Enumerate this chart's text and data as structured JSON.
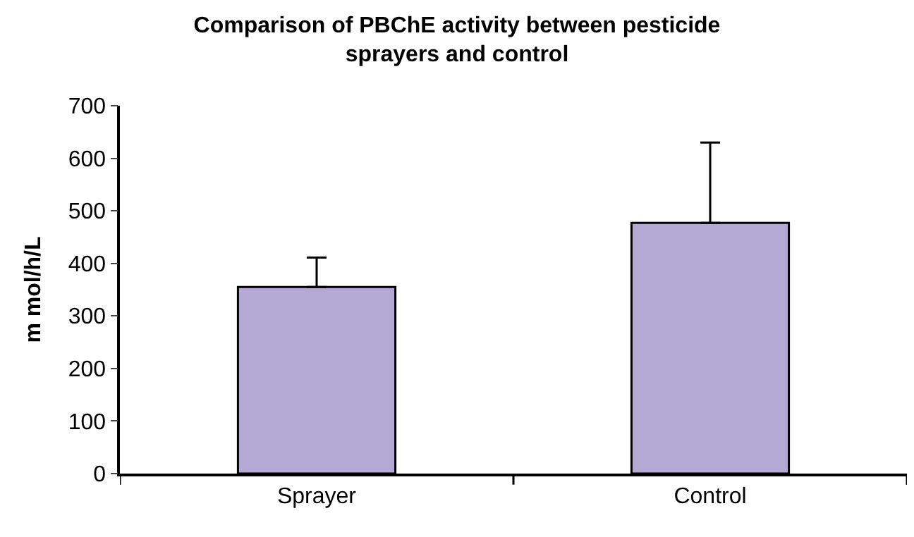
{
  "chart_data": {
    "type": "bar",
    "title": "Comparison of PBChE activity between pesticide\nsprayers and control",
    "ylabel": "m mol/h/L",
    "categories": [
      "Sprayer",
      "Control"
    ],
    "values": [
      355,
      477
    ],
    "errors": [
      [
        355,
        411
      ],
      [
        477,
        630
      ]
    ],
    "color": "#b4a9d4",
    "ylim": [
      0,
      700
    ],
    "yticks": [
      0,
      100,
      200,
      300,
      400,
      500,
      600,
      700
    ]
  }
}
